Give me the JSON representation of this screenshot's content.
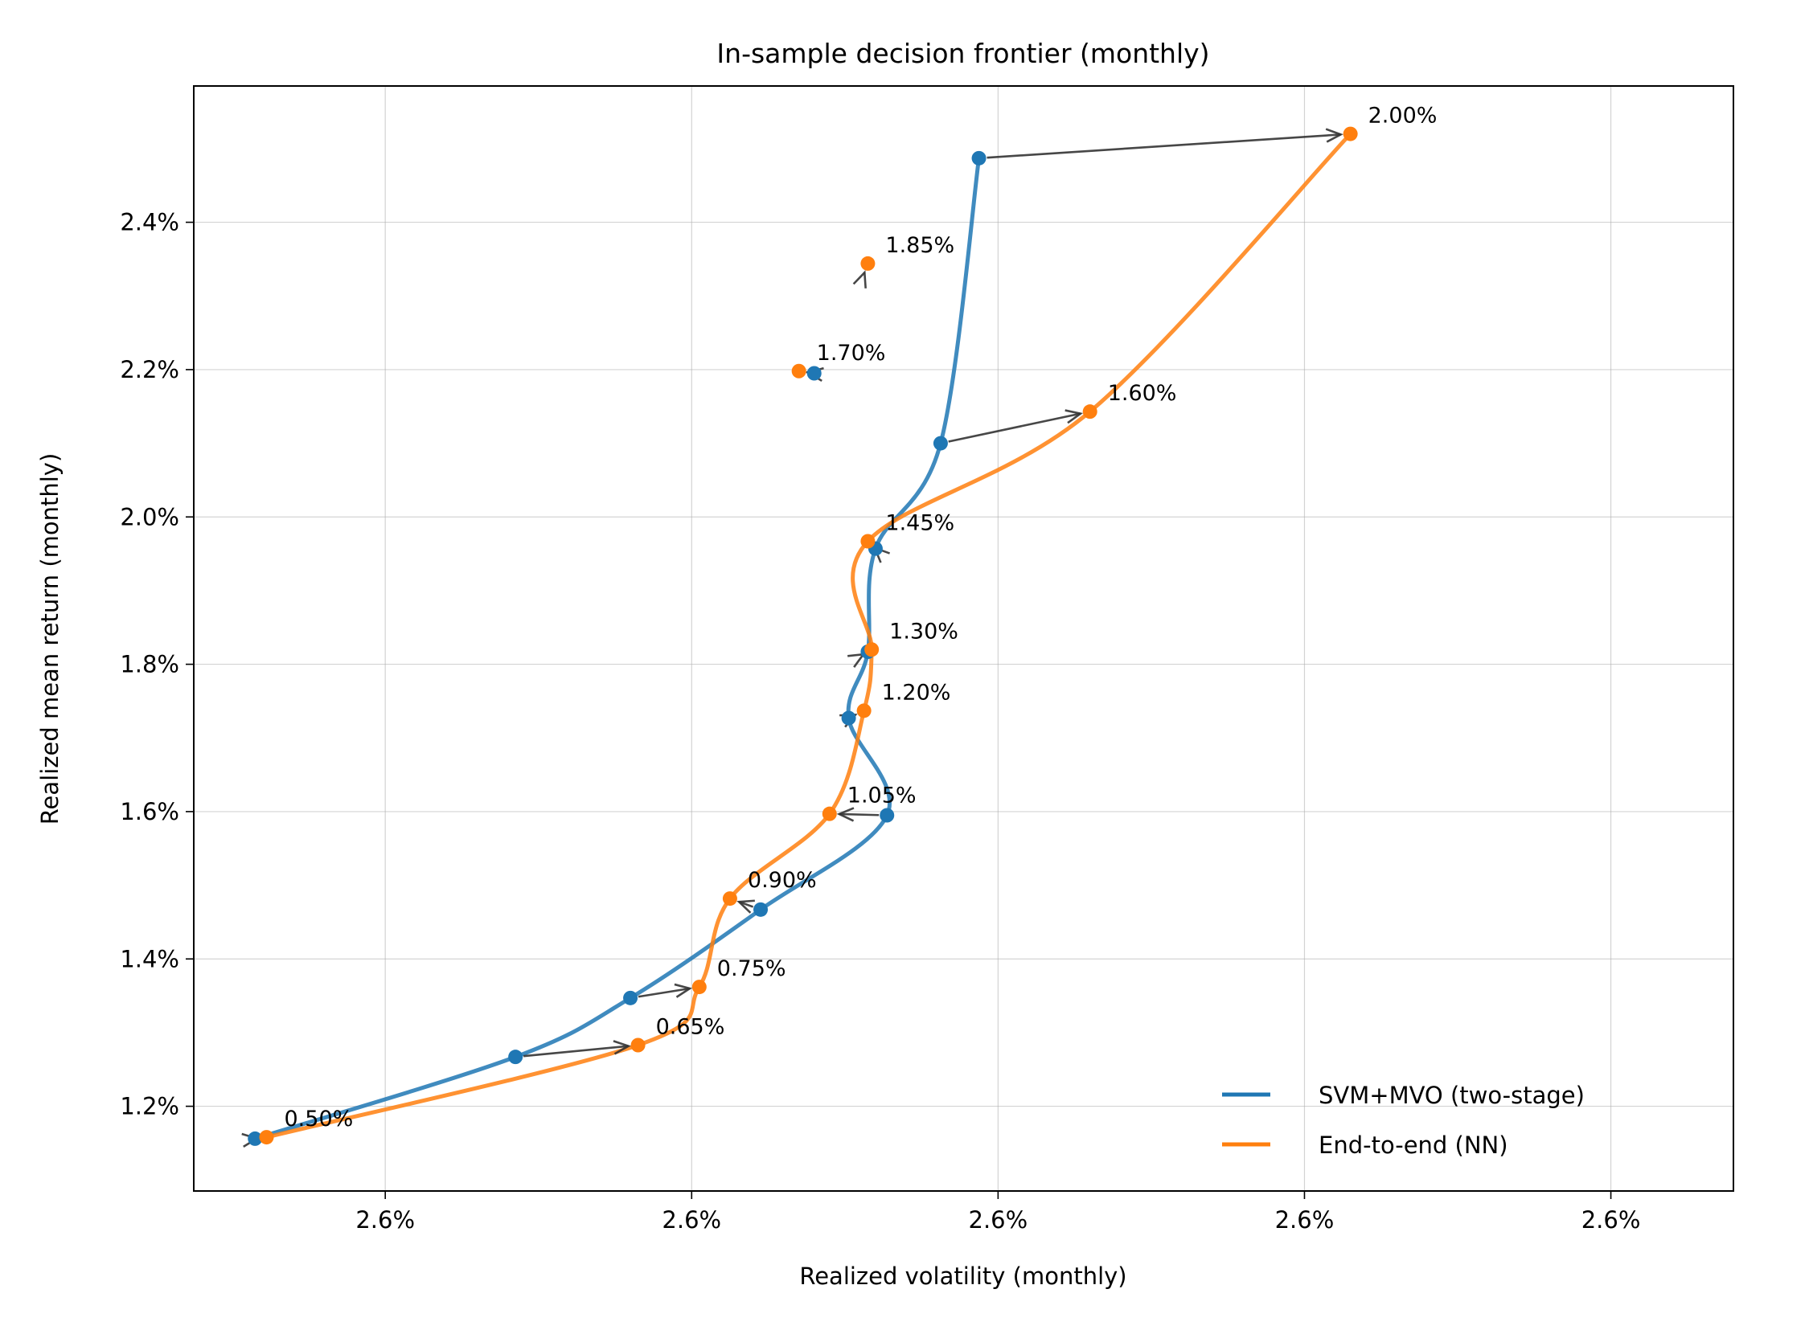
{
  "chart_data": {
    "type": "line",
    "title": "In-sample decision frontier (monthly)",
    "xlabel": "Realized volatility (monthly)",
    "ylabel": "Realized mean return (monthly)",
    "x_tick_labels": [
      "2.6%",
      "2.6%",
      "2.6%",
      "2.6%",
      "2.6%"
    ],
    "x_tick_values": [
      2.5876,
      2.5884,
      2.5892,
      2.59,
      2.5908
    ],
    "xlim": [
      2.5871,
      2.59112
    ],
    "ylim": [
      1.085,
      2.585
    ],
    "y_ticks": [
      1.2,
      1.4,
      1.6,
      1.8,
      2.0,
      2.2,
      2.4
    ],
    "y_tick_labels": [
      "1.2%",
      "1.4%",
      "1.6%",
      "1.8%",
      "2.0%",
      "2.2%",
      "2.4%"
    ],
    "grid": true,
    "legend_position": "lower-right",
    "series": [
      {
        "name": "SVM+MVO (two-stage)",
        "color": "#1f77b4",
        "x": [
          2.58726,
          2.58794,
          2.58824,
          2.58858,
          2.58891,
          2.58881,
          2.58886,
          2.58888,
          2.58905,
          2.58915
        ],
        "y": [
          1.156,
          1.267,
          1.347,
          1.467,
          1.595,
          1.727,
          1.817,
          1.957,
          2.1,
          2.487
        ]
      },
      {
        "name": "End-to-end (NN)",
        "color": "#ff7f0e",
        "x": [
          2.58729,
          2.58826,
          2.58842,
          2.5885,
          2.58876,
          2.58885,
          2.58887,
          2.58886,
          2.58944,
          2.59012
        ],
        "y": [
          1.158,
          1.283,
          1.362,
          1.482,
          1.597,
          1.737,
          1.82,
          1.967,
          2.143,
          2.52
        ]
      }
    ],
    "point_labels": [
      "0.50%",
      "0.65%",
      "0.75%",
      "0.90%",
      "1.05%",
      "1.20%",
      "1.30%",
      "1.45%",
      "1.60%",
      "2.00%"
    ],
    "extra_points": {
      "svm": [
        {
          "x": 2.58872,
          "y": 2.195
        }
      ],
      "e2e": [
        {
          "x": 2.58868,
          "y": 2.198
        },
        {
          "x": 2.58886,
          "y": 2.344
        }
      ]
    },
    "extra_point_labels": [
      "1.70%",
      "1.85%"
    ]
  }
}
